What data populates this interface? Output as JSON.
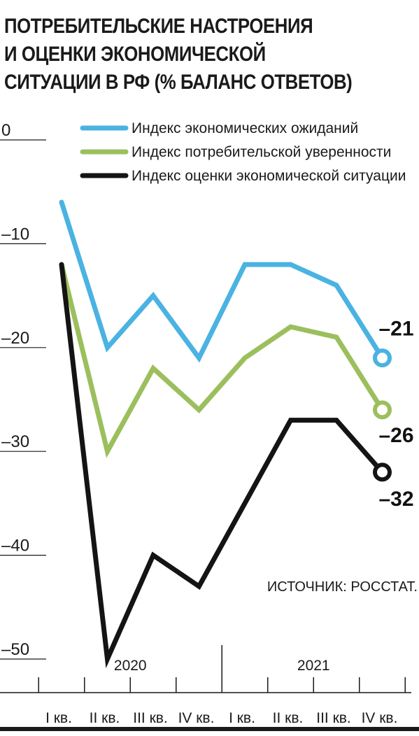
{
  "title_lines": [
    "ПОТРЕБИТЕЛЬСКИЕ НАСТРОЕНИЯ",
    "И ОЦЕНКИ ЭКОНОМИЧЕСКОЙ",
    "СИТУАЦИИ В РФ (% БАЛАНС ОТВЕТОВ)"
  ],
  "source": "ИСТОЧНИК: РОССТАТ.",
  "colors": {
    "blue": "#4ab3e2",
    "green": "#9cbf5e",
    "black": "#141414"
  },
  "chart_data": {
    "type": "line",
    "title": "ПОТРЕБИТЕЛЬСКИЕ НАСТРОЕНИЯ И ОЦЕНКИ ЭКОНОМИЧЕСКОЙ СИТУАЦИИ В РФ (% БАЛАНС ОТВЕТОВ)",
    "categories": [
      "I кв.",
      "II кв.",
      "III кв.",
      "IV кв.",
      "I кв.",
      "II кв.",
      "III кв.",
      "IV кв."
    ],
    "years": [
      {
        "label": "2020",
        "from": 0,
        "to": 3
      },
      {
        "label": "2021",
        "from": 4,
        "to": 7
      }
    ],
    "yticks": [
      0,
      -10,
      -20,
      -30,
      -40,
      -50
    ],
    "ytick_labels": [
      "0",
      "–10",
      "–20",
      "–30",
      "–40",
      "–50"
    ],
    "ylim": [
      -50,
      0
    ],
    "legend_position": "top-right",
    "grid": false,
    "series": [
      {
        "name": "Индекс  экономических ожиданий",
        "color": "#4ab3e2",
        "values": [
          -6,
          -20,
          -15,
          -21,
          -12,
          -12,
          -14,
          -21
        ],
        "end_label": "–21"
      },
      {
        "name": "Индекс потребительской уверенности",
        "color": "#9cbf5e",
        "values": [
          -12,
          -30,
          -22,
          -26,
          -21,
          -18,
          -19,
          -26
        ],
        "end_label": "–26"
      },
      {
        "name": "Индекс оценки экономической ситуации",
        "color": "#141414",
        "values": [
          -12,
          -50,
          -40,
          -43,
          -35,
          -27,
          -27,
          -32
        ],
        "end_label": "–32"
      }
    ]
  }
}
